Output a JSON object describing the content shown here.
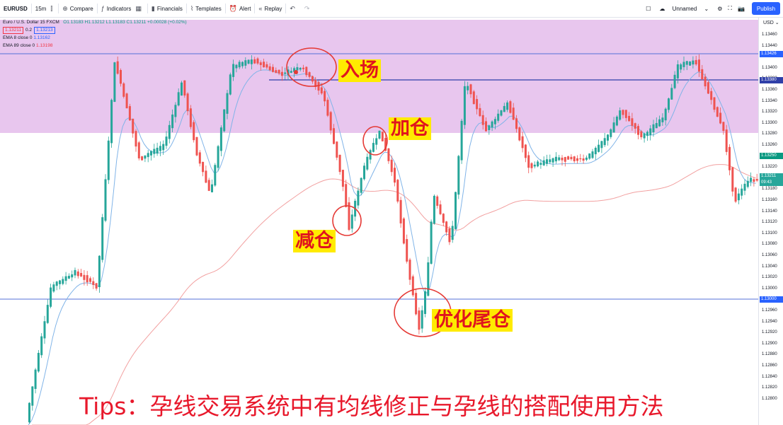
{
  "toolbar": {
    "symbol": "EURUSD",
    "interval": "15m",
    "compare": "Compare",
    "indicators": "Indicators",
    "financials": "Financials",
    "templates": "Templates",
    "alert": "Alert",
    "replay": "Replay",
    "layout_name": "Unnamed",
    "publish": "Publish"
  },
  "legend": {
    "title": "Euro / U.S. Dollar  15  FXCM",
    "ohlc": "O1.13183 H1.13212 L1.13183 C1.13211 +0.00028 (+0.02%)",
    "bid": "1.13211",
    "spread": "0.2",
    "ask": "1.13213",
    "ema8_label": "EMA 8 close 0",
    "ema8_value": "1.13162",
    "ema89_label": "EMA 89 close 0",
    "ema89_value": "1.13198"
  },
  "axis": {
    "currency": "USD",
    "ticks": [
      "1.13460",
      "1.13440",
      "1.13420",
      "1.13400",
      "1.13380",
      "1.13360",
      "1.13340",
      "1.13320",
      "1.13300",
      "1.13280",
      "1.13260",
      "1.13240",
      "1.13220",
      "1.13200",
      "1.13180",
      "1.13160",
      "1.13140",
      "1.13120",
      "1.13100",
      "1.13080",
      "1.13060",
      "1.13040",
      "1.13020",
      "1.13000",
      "1.12980",
      "1.12960",
      "1.12940",
      "1.12920",
      "1.12900",
      "1.12880",
      "1.12860",
      "1.12840",
      "1.12820",
      "1.12800"
    ],
    "tag_top": "1.13426",
    "tag_mid": "1.13380",
    "tag_ema": "1.13250",
    "tag_price": "1.13211",
    "tag_time": "09:43",
    "tag_low": "1.13000"
  },
  "annotations": {
    "entry": "入场",
    "add": "加仓",
    "reduce": "减仓",
    "tail": "优化尾仓"
  },
  "tips": "Tips：孕线交易系统中有均线修正与孕线的搭配使用方法",
  "colors": {
    "up": "#26a69a",
    "down": "#ef5350",
    "zone": "#e9c9ef",
    "ema_fast": "#7fb3e6",
    "ema_slow": "#f4a3a3",
    "hline": "#4f6bd6"
  }
}
